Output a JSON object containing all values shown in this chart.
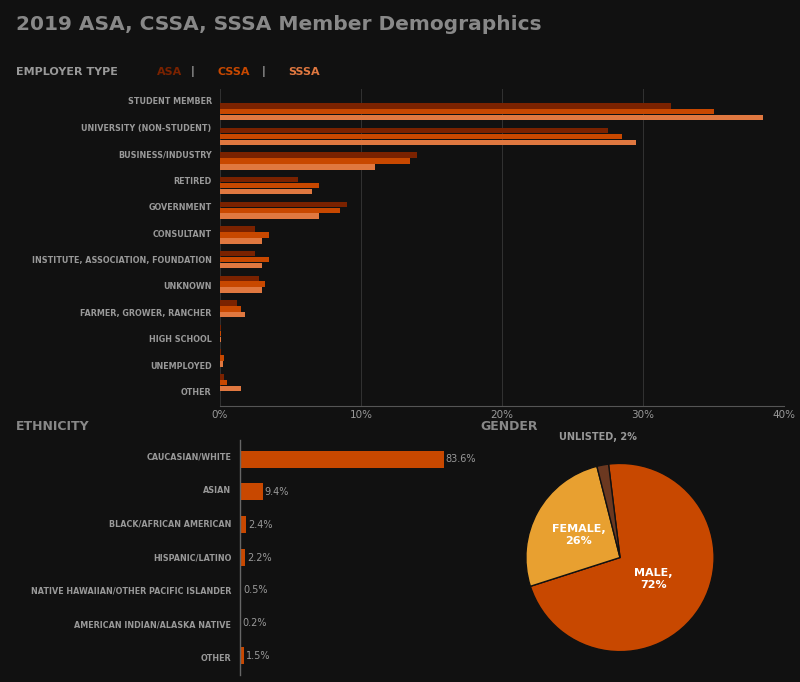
{
  "title": "2019 ASA, CSSA, SSSA Member Demographics",
  "background_color": "#111111",
  "text_color": "#999999",
  "employer_label": "EMPLOYER TYPE",
  "asa_label": "ASA",
  "cssa_label": "CSSA",
  "sssa_label": "SSSA",
  "asa_color": "#7A2200",
  "cssa_color": "#C84800",
  "sssa_color": "#E07840",
  "employer_categories": [
    "STUDENT MEMBER",
    "UNIVERSITY (NON-STUDENT)",
    "BUSINESS/INDUSTRY",
    "RETIRED",
    "GOVERNMENT",
    "CONSULTANT",
    "INSTITUTE, ASSOCIATION, FOUNDATION",
    "UNKNOWN",
    "FARMER, GROWER, RANCHER",
    "HIGH SCHOOL",
    "UNEMPLOYED",
    "OTHER"
  ],
  "asa_values": [
    35.0,
    28.5,
    13.5,
    7.0,
    8.5,
    3.5,
    3.5,
    3.2,
    1.5,
    0.1,
    0.3,
    0.5
  ],
  "cssa_values": [
    38.5,
    29.5,
    11.0,
    6.5,
    7.0,
    3.0,
    3.0,
    3.0,
    1.8,
    0.05,
    0.2,
    1.5
  ],
  "sssa_values": [
    32.0,
    27.5,
    14.0,
    5.5,
    9.0,
    2.5,
    2.5,
    2.8,
    1.2,
    0.05,
    0.1,
    0.3
  ],
  "employer_xlim": [
    0,
    40
  ],
  "employer_xticks": [
    0,
    10,
    20,
    30,
    40
  ],
  "employer_xtick_labels": [
    "0%",
    "10%",
    "20%",
    "30%",
    "40%"
  ],
  "ethnicity_label": "ETHNICITY",
  "gender_section_label": "GENDER",
  "ethnicity_categories": [
    "CAUCASIAN/WHITE",
    "ASIAN",
    "BLACK/AFRICAN AMERICAN",
    "HISPANIC/LATINO",
    "NATIVE HAWAIIAN/OTHER PACIFIC ISLANDER",
    "AMERICAN INDIAN/ALASKA NATIVE",
    "OTHER"
  ],
  "ethnicity_values": [
    83.6,
    9.4,
    2.4,
    2.2,
    0.5,
    0.2,
    1.5
  ],
  "ethnicity_color": "#C84800",
  "ethnicity_xlim": [
    0,
    92
  ],
  "gender_labels": [
    "MALE",
    "FEMALE",
    "UNLISTED"
  ],
  "gender_values": [
    72,
    26,
    2
  ],
  "gender_colors": [
    "#C84800",
    "#E8A030",
    "#6B3820"
  ],
  "pipe_color": "#888888",
  "grid_color": "#333333",
  "spine_color": "#555555"
}
